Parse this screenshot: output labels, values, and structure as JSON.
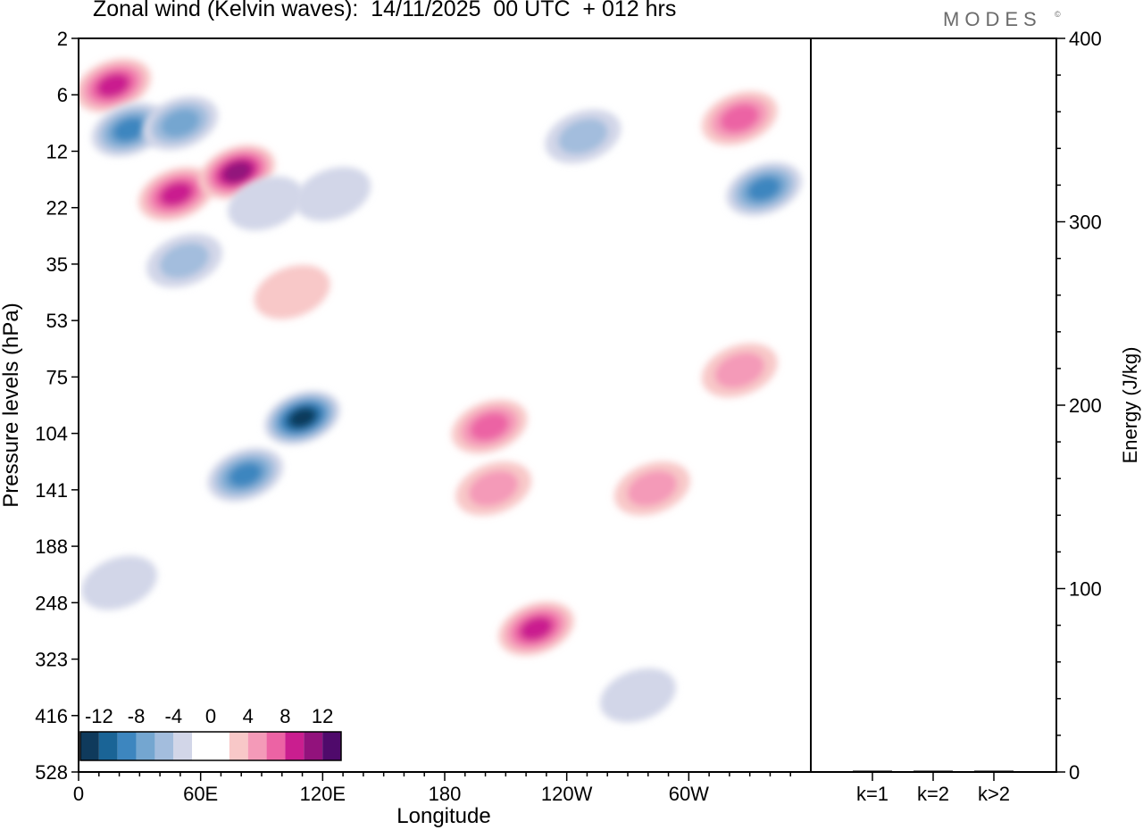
{
  "header": {
    "title": "Zonal wind (Kelvin waves):  14/11/2025  00 UTC  + 012 hrs",
    "brand": "MODES",
    "brand_mark": "©"
  },
  "colors": {
    "negative": [
      "#0f3a5c",
      "#1a6496",
      "#3d86bf",
      "#74a6d0",
      "#a3bddd",
      "#d2d6e8"
    ],
    "zero": "#ffffff",
    "positive": [
      "#f8c8c8",
      "#f49ab8",
      "#ec63a4",
      "#ca1e8f",
      "#92127c",
      "#4f0a6b"
    ]
  },
  "chart_data": [
    {
      "type": "heatmap",
      "title": "Zonal wind (Kelvin waves):  14/11/2025  00 UTC  + 012 hrs",
      "xlabel": "Longitude",
      "ylabel": "Pressure levels (hPa)",
      "x_ticks": [
        "0",
        "60E",
        "120E",
        "180",
        "120W",
        "60W"
      ],
      "x_tick_values": [
        0,
        60,
        120,
        180,
        240,
        300
      ],
      "xlim": [
        0,
        360
      ],
      "y_ticks": [
        "2",
        "6",
        "12",
        "22",
        "35",
        "53",
        "75",
        "104",
        "141",
        "188",
        "248",
        "323",
        "416",
        "528"
      ],
      "colorbar_labels": [
        "-12",
        "-8",
        "-4",
        "0",
        "4",
        "8",
        "12"
      ],
      "contour_levels": [
        -14,
        -12,
        -10,
        -8,
        -6,
        -4,
        -2,
        2,
        4,
        6,
        8,
        10,
        12,
        14
      ],
      "features": [
        {
          "lon": 17,
          "level": 5,
          "value": 9
        },
        {
          "lon": 25,
          "level": 9.2,
          "value": -9
        },
        {
          "lon": 50,
          "level": 8.5,
          "value": -7
        },
        {
          "lon": 48,
          "level": 19,
          "value": 9
        },
        {
          "lon": 78,
          "level": 15,
          "value": 11
        },
        {
          "lon": 92,
          "level": 21,
          "value": -2
        },
        {
          "lon": 125,
          "level": 19,
          "value": -2
        },
        {
          "lon": 52,
          "level": 34,
          "value": -5
        },
        {
          "lon": 105,
          "level": 43,
          "value": 3
        },
        {
          "lon": 110,
          "level": 95,
          "value": -13
        },
        {
          "lon": 82,
          "level": 130,
          "value": -8
        },
        {
          "lon": 202,
          "level": 100,
          "value": 7
        },
        {
          "lon": 204,
          "level": 140,
          "value": 4
        },
        {
          "lon": 225,
          "level": 280,
          "value": 8
        },
        {
          "lon": 325,
          "level": 72,
          "value": 5
        },
        {
          "lon": 337,
          "level": 18,
          "value": -8
        },
        {
          "lon": 325,
          "level": 8,
          "value": 7
        },
        {
          "lon": 282,
          "level": 140,
          "value": 4
        },
        {
          "lon": 275,
          "level": 380,
          "value": -3
        },
        {
          "lon": 248,
          "level": 10,
          "value": -5
        },
        {
          "lon": 20,
          "level": 225,
          "value": -2
        }
      ]
    },
    {
      "type": "bar",
      "title": "",
      "categories": [
        "k=1",
        "k=2",
        "k>2"
      ],
      "values": [
        0.6,
        0.2,
        0.6
      ],
      "ylabel": "Energy (J/kg)",
      "ylim": [
        0,
        400
      ],
      "y_ticks": [
        "0",
        "100",
        "200",
        "300",
        "400"
      ]
    }
  ]
}
